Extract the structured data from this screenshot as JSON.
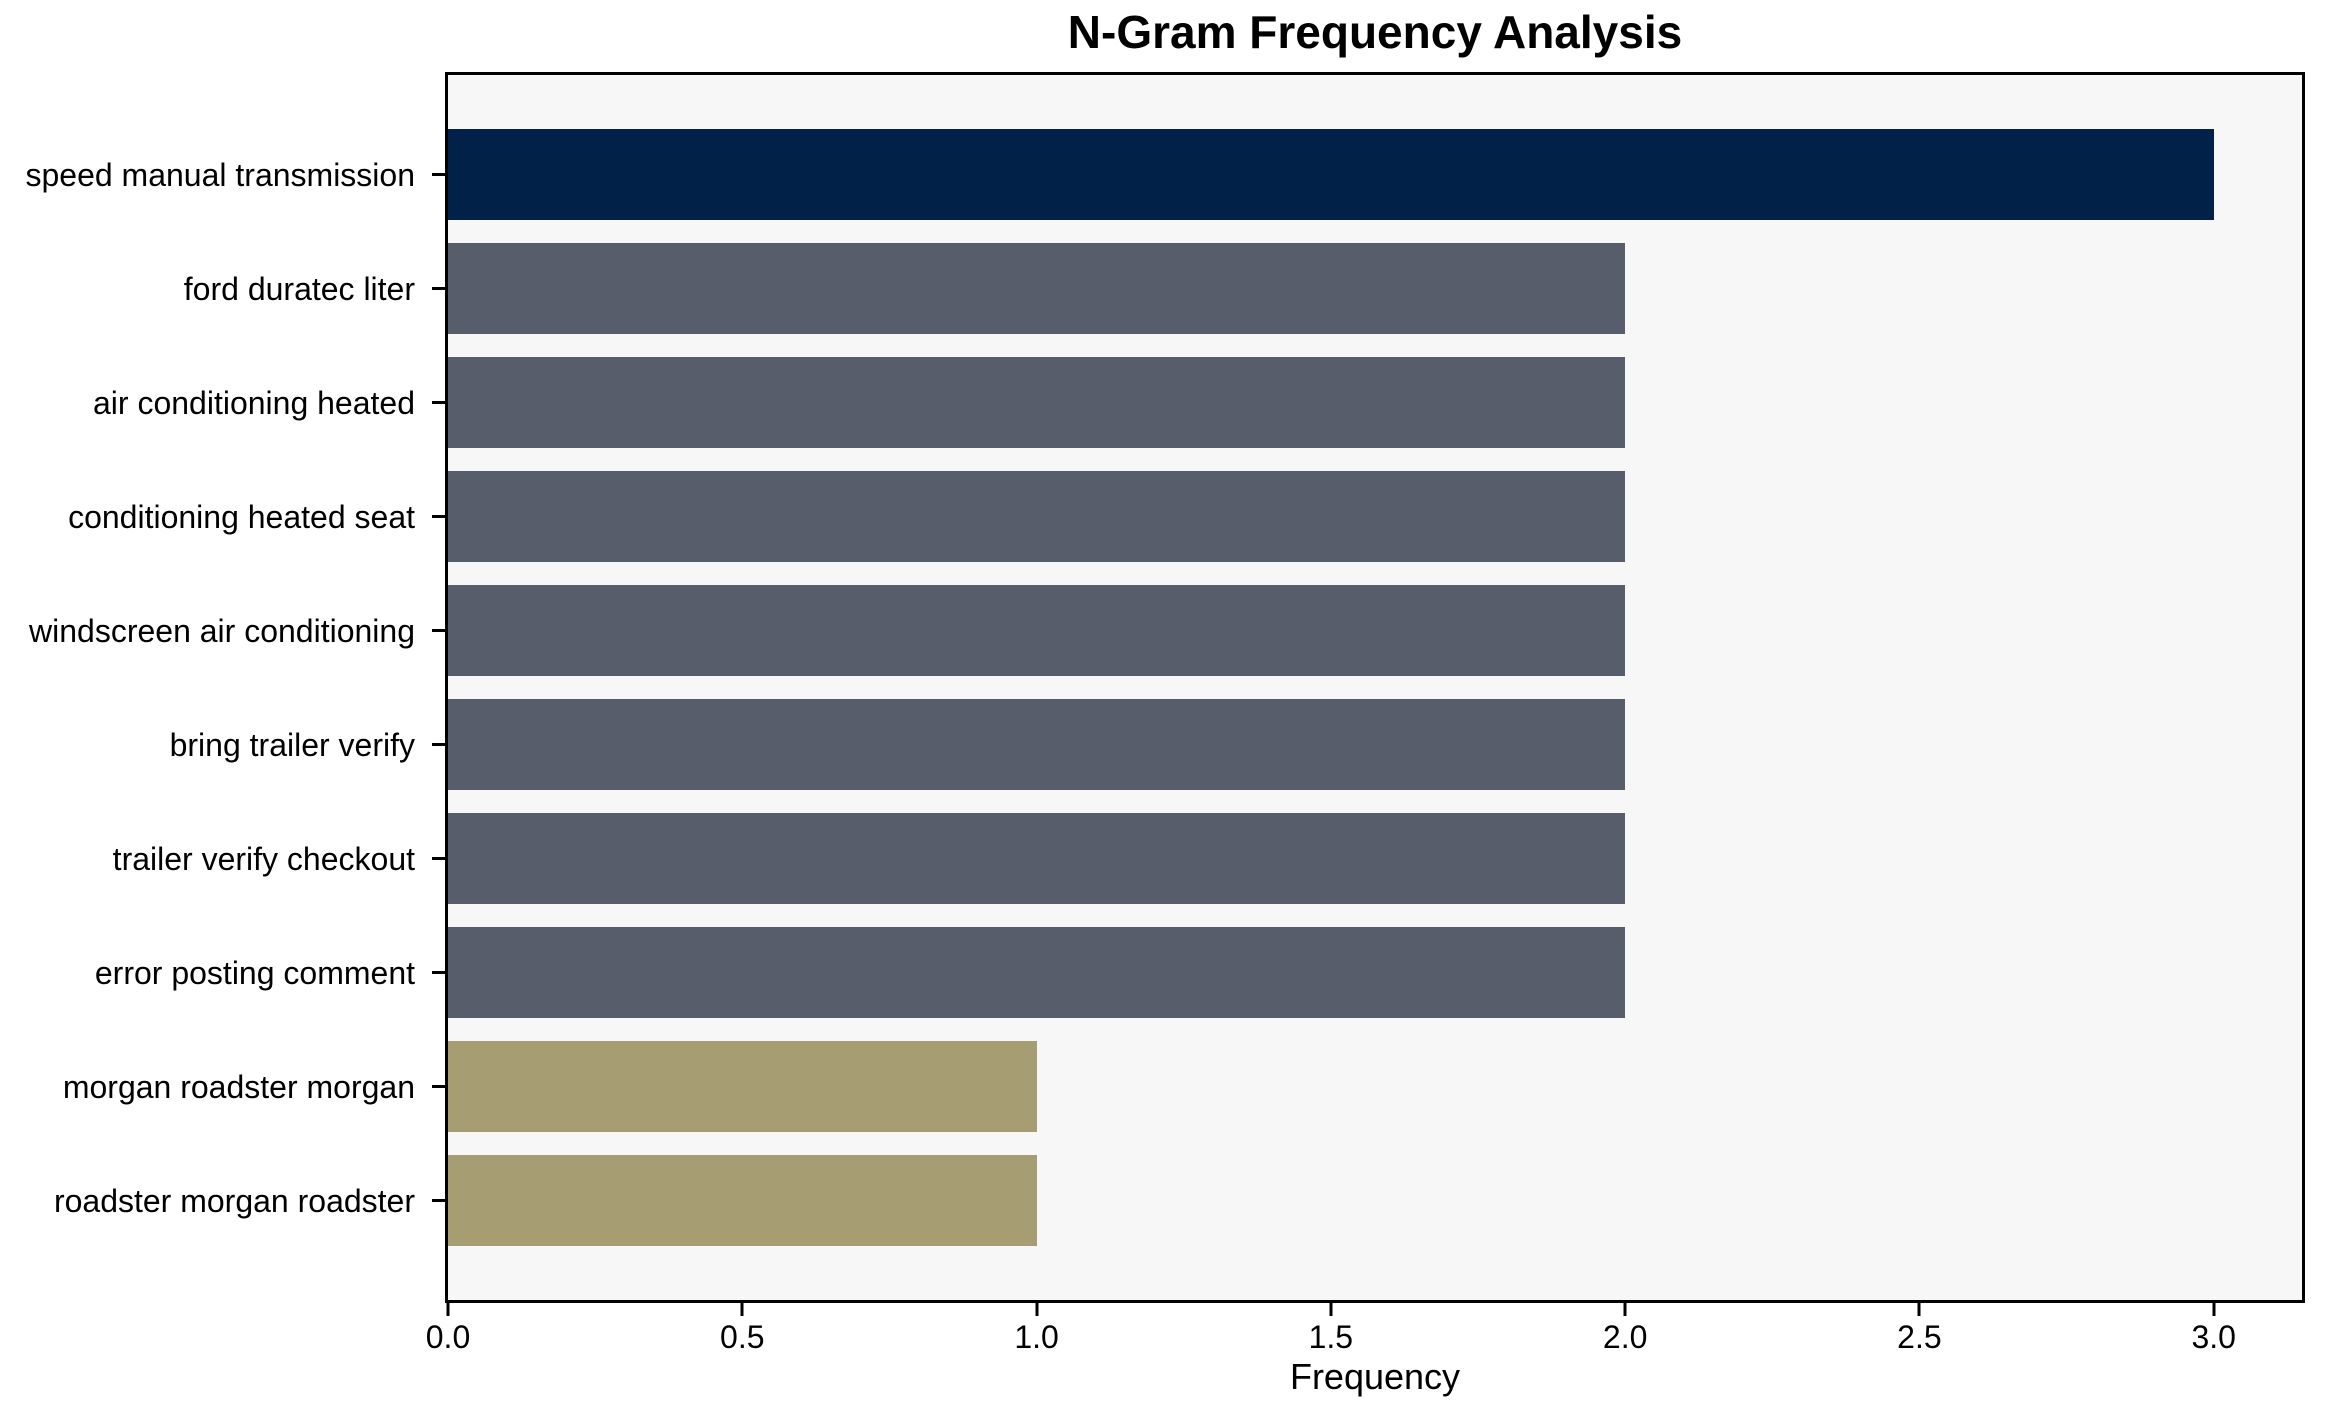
{
  "title": "N-Gram Frequency Analysis",
  "chart_data": {
    "type": "bar",
    "orientation": "horizontal",
    "title": "N-Gram Frequency Analysis",
    "xlabel": "Frequency",
    "ylabel": "",
    "categories": [
      "speed manual transmission",
      "ford duratec liter",
      "air conditioning heated",
      "conditioning heated seat",
      "windscreen air conditioning",
      "bring trailer verify",
      "trailer verify checkout",
      "error posting comment",
      "morgan roadster morgan",
      "roadster morgan roadster"
    ],
    "values": [
      3,
      2,
      2,
      2,
      2,
      2,
      2,
      2,
      1,
      1
    ],
    "bar_colors": [
      "#022149",
      "#575d6b",
      "#575d6b",
      "#575d6b",
      "#575d6b",
      "#575d6b",
      "#575d6b",
      "#575d6b",
      "#a69d72",
      "#a69d72"
    ],
    "x_ticks": [
      0.0,
      0.5,
      1.0,
      1.5,
      2.0,
      2.5,
      3.0
    ],
    "x_tick_labels": [
      "0.0",
      "0.5",
      "1.0",
      "1.5",
      "2.0",
      "2.5",
      "3.0"
    ],
    "xlim": [
      0,
      3.15
    ],
    "grid": false,
    "legend": null,
    "plot_background": "#f7f7f8",
    "figure_background": "#ffffff",
    "spine_color": "#000000"
  }
}
